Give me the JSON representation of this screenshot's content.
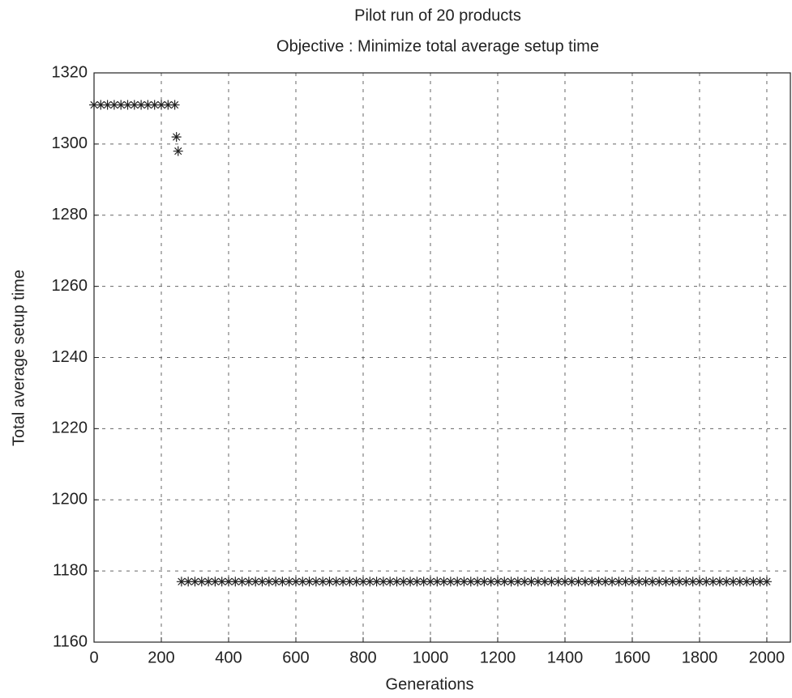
{
  "chart_data": {
    "type": "scatter",
    "title": "Pilot run of 20 products",
    "subtitle": "Objective : Minimize total average setup time",
    "x_label": "Generations",
    "y_label": "Total average setup time",
    "marker": "asterisk",
    "color": "#222222",
    "grid": true,
    "xlim": [
      0,
      2070
    ],
    "ylim": [
      1160,
      1320
    ],
    "xticks": [
      0,
      200,
      400,
      600,
      800,
      1000,
      1200,
      1400,
      1600,
      1800,
      2000
    ],
    "yticks": [
      1160,
      1180,
      1200,
      1220,
      1240,
      1260,
      1280,
      1300,
      1320
    ],
    "x": [
      0,
      20,
      40,
      60,
      80,
      100,
      120,
      140,
      160,
      180,
      200,
      220,
      240,
      245,
      250,
      260,
      280,
      300,
      320,
      340,
      360,
      380,
      400,
      420,
      440,
      460,
      480,
      500,
      520,
      540,
      560,
      580,
      600,
      620,
      640,
      660,
      680,
      700,
      720,
      740,
      760,
      780,
      800,
      820,
      840,
      860,
      880,
      900,
      920,
      940,
      960,
      980,
      1000,
      1020,
      1040,
      1060,
      1080,
      1100,
      1120,
      1140,
      1160,
      1180,
      1200,
      1220,
      1240,
      1260,
      1280,
      1300,
      1320,
      1340,
      1360,
      1380,
      1400,
      1420,
      1440,
      1460,
      1480,
      1500,
      1520,
      1540,
      1560,
      1580,
      1600,
      1620,
      1640,
      1660,
      1680,
      1700,
      1720,
      1740,
      1760,
      1780,
      1800,
      1820,
      1840,
      1860,
      1880,
      1900,
      1920,
      1940,
      1960,
      1980,
      2000
    ],
    "values": [
      1311,
      1311,
      1311,
      1311,
      1311,
      1311,
      1311,
      1311,
      1311,
      1311,
      1311,
      1311,
      1311,
      1302,
      1298,
      1177,
      1177,
      1177,
      1177,
      1177,
      1177,
      1177,
      1177,
      1177,
      1177,
      1177,
      1177,
      1177,
      1177,
      1177,
      1177,
      1177,
      1177,
      1177,
      1177,
      1177,
      1177,
      1177,
      1177,
      1177,
      1177,
      1177,
      1177,
      1177,
      1177,
      1177,
      1177,
      1177,
      1177,
      1177,
      1177,
      1177,
      1177,
      1177,
      1177,
      1177,
      1177,
      1177,
      1177,
      1177,
      1177,
      1177,
      1177,
      1177,
      1177,
      1177,
      1177,
      1177,
      1177,
      1177,
      1177,
      1177,
      1177,
      1177,
      1177,
      1177,
      1177,
      1177,
      1177,
      1177,
      1177,
      1177,
      1177,
      1177,
      1177,
      1177,
      1177,
      1177,
      1177,
      1177,
      1177,
      1177,
      1177,
      1177,
      1177,
      1177,
      1177,
      1177,
      1177,
      1177,
      1177,
      1177,
      1177
    ]
  }
}
